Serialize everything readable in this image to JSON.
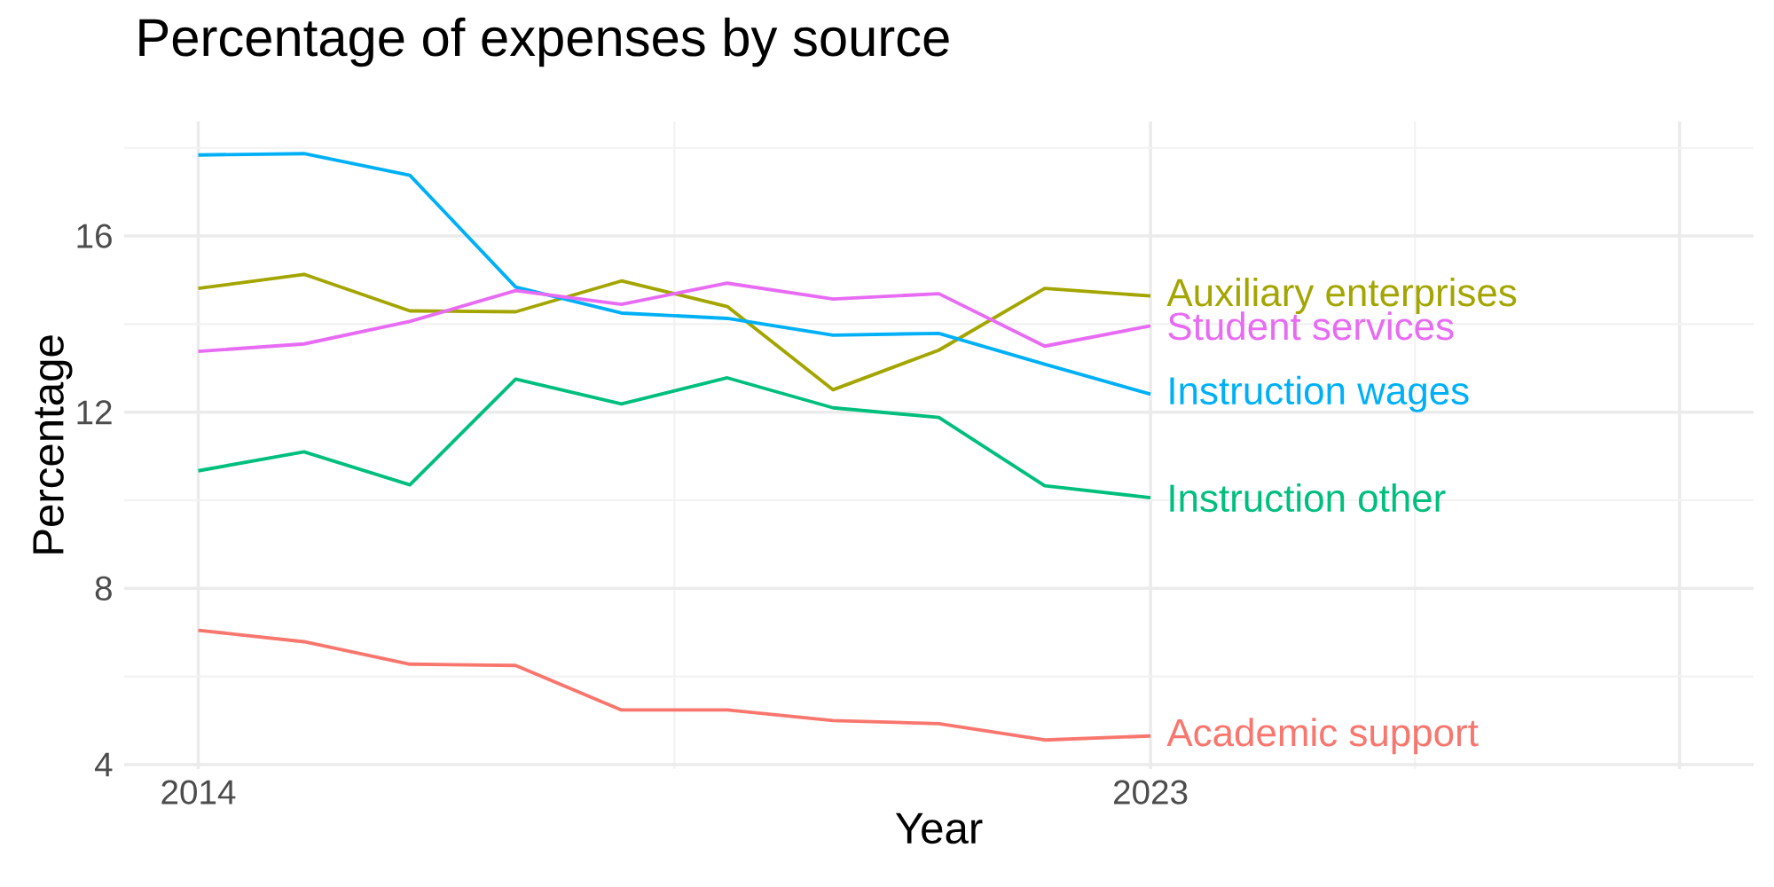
{
  "chart_data": {
    "type": "line",
    "title": "Percentage of expenses by source",
    "xlabel": "Year",
    "ylabel": "Percentage",
    "x": [
      2014,
      2015,
      2016,
      2017,
      2018,
      2019,
      2020,
      2021,
      2022,
      2023
    ],
    "series": [
      {
        "name": "Academic support",
        "color": "#F8766D",
        "values": [
          7.05,
          6.79,
          6.28,
          6.25,
          5.24,
          5.24,
          5.0,
          4.93,
          4.56,
          4.65
        ]
      },
      {
        "name": "Auxiliary enterprises",
        "color": "#A3A500",
        "values": [
          14.81,
          15.13,
          14.3,
          14.28,
          14.98,
          14.4,
          12.51,
          13.41,
          14.81,
          14.64
        ]
      },
      {
        "name": "Instruction other",
        "color": "#00BF7D",
        "values": [
          10.67,
          11.1,
          10.35,
          12.75,
          12.19,
          12.78,
          12.1,
          11.88,
          10.33,
          10.06
        ]
      },
      {
        "name": "Instruction wages",
        "color": "#00B0F6",
        "values": [
          17.84,
          17.87,
          17.38,
          14.84,
          14.25,
          14.13,
          13.75,
          13.79,
          13.09,
          12.41
        ]
      },
      {
        "name": "Student services",
        "color": "#E76BF3",
        "values": [
          13.38,
          13.55,
          14.06,
          14.76,
          14.45,
          14.93,
          14.57,
          14.69,
          13.5,
          13.96
        ]
      }
    ],
    "xlim": [
      2013.3,
      2028.7
    ],
    "ylim": [
      3.9,
      18.6
    ],
    "xticks": [
      2014,
      2023,
      {
        "value": 2028,
        "label": null
      }
    ],
    "yticks": [
      4,
      8,
      12,
      16
    ],
    "grid": true,
    "legend": false,
    "marker": "none",
    "line_style": "solid"
  }
}
